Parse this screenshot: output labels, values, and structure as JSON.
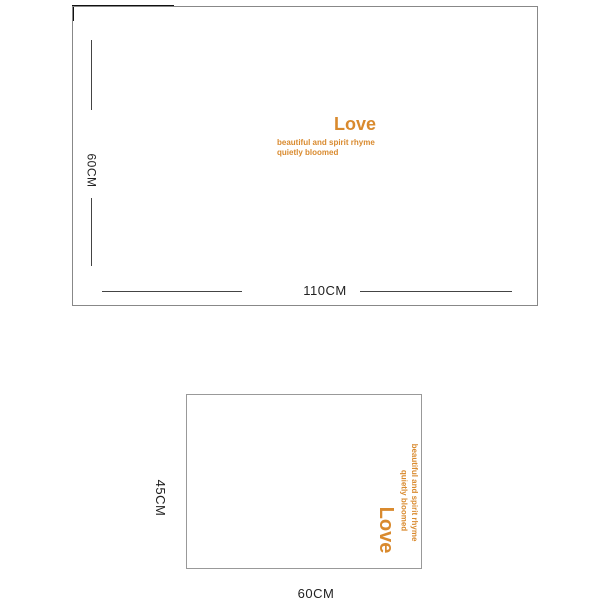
{
  "product_view": {
    "title_text": "Love",
    "subtitle_line1": "beautiful and spirit rhyme",
    "subtitle_line2": "quietly bloomed",
    "height_label": "60CM",
    "width_label": "110CM"
  },
  "sheet_view": {
    "title_text": "Love",
    "subtitle_line1": "beautiful and spirit rhyme",
    "subtitle_line2": "quietly bloomed",
    "height_label": "45CM",
    "width_label": "60CM"
  },
  "colors": {
    "flower": "#7cc8ef",
    "accent": "#d98a2e",
    "fairy_hair": "#1ea0d8"
  },
  "icons": [
    "flower-icon",
    "butterfly-icon",
    "fairy-icon",
    "heart-icon",
    "feather-icon"
  ]
}
